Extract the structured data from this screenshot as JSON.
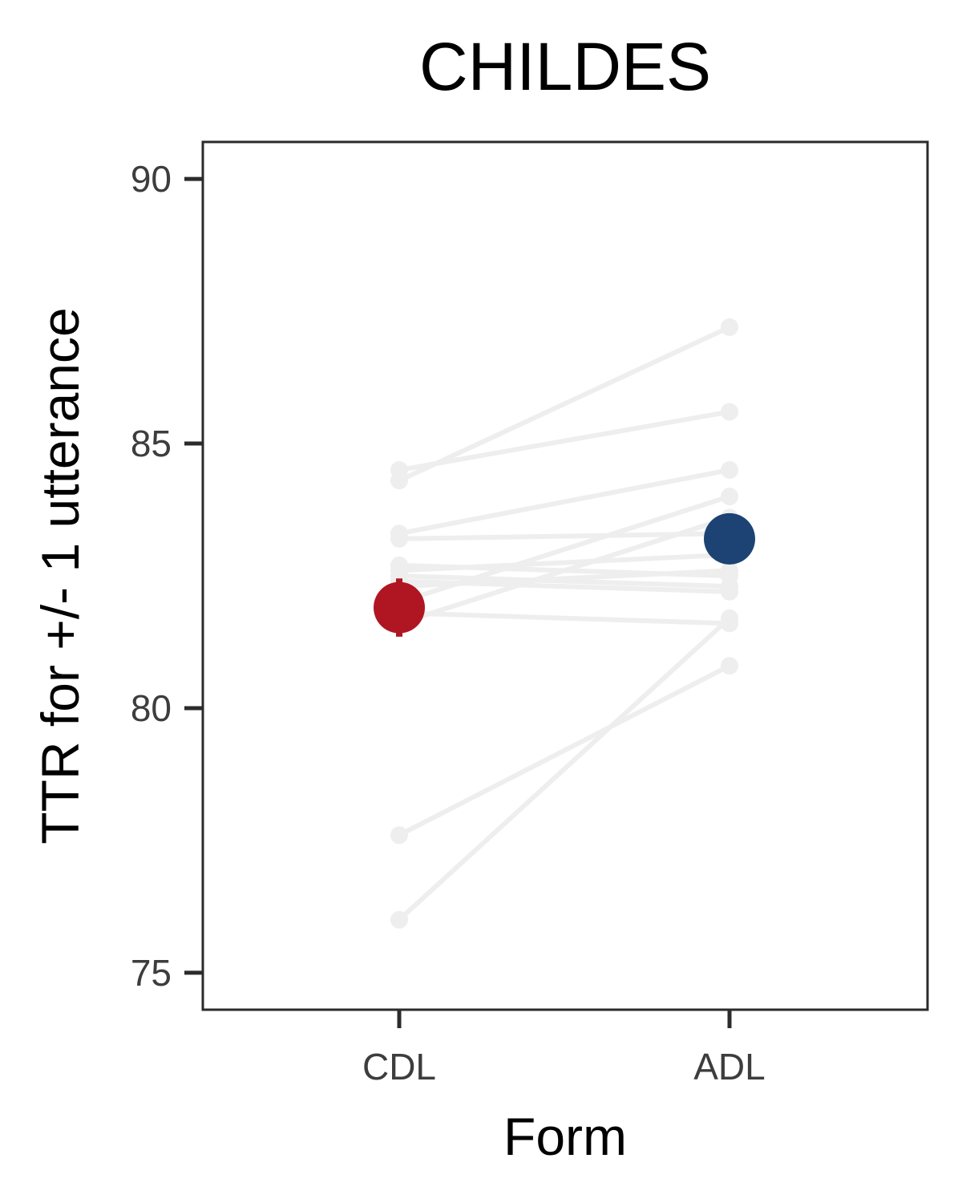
{
  "chart_data": {
    "type": "scatter",
    "title": "CHILDES",
    "xlabel": "Form",
    "ylabel": "TTR for +/- 1 utterance",
    "categories": [
      "CDL",
      "ADL"
    ],
    "ylim": [
      74.3,
      90.7
    ],
    "yticks": [
      75,
      80,
      85,
      90
    ],
    "grid": false,
    "individual_pairs": [
      {
        "CDL": 84.3,
        "ADL": 87.2
      },
      {
        "CDL": 84.5,
        "ADL": 85.6
      },
      {
        "CDL": 83.3,
        "ADL": 84.5
      },
      {
        "CDL": 82.0,
        "ADL": 84.0
      },
      {
        "CDL": 83.2,
        "ADL": 83.3
      },
      {
        "CDL": 82.6,
        "ADL": 82.9
      },
      {
        "CDL": 81.6,
        "ADL": 83.6
      },
      {
        "CDL": 82.7,
        "ADL": 82.5
      },
      {
        "CDL": 82.3,
        "ADL": 82.6
      },
      {
        "CDL": 82.5,
        "ADL": 82.3
      },
      {
        "CDL": 82.4,
        "ADL": 82.2
      },
      {
        "CDL": 81.8,
        "ADL": 81.6
      },
      {
        "CDL": 77.6,
        "ADL": 80.8
      },
      {
        "CDL": 76.0,
        "ADL": 81.7
      }
    ],
    "means": [
      {
        "category": "CDL",
        "value": 81.9,
        "error": 0.55,
        "color": "#b01622"
      },
      {
        "category": "ADL",
        "value": 83.2,
        "error": 0.3,
        "color": "#1c4373"
      }
    ],
    "colors": {
      "individual": "#eeeeee",
      "axis": "#2b2b2b"
    }
  }
}
